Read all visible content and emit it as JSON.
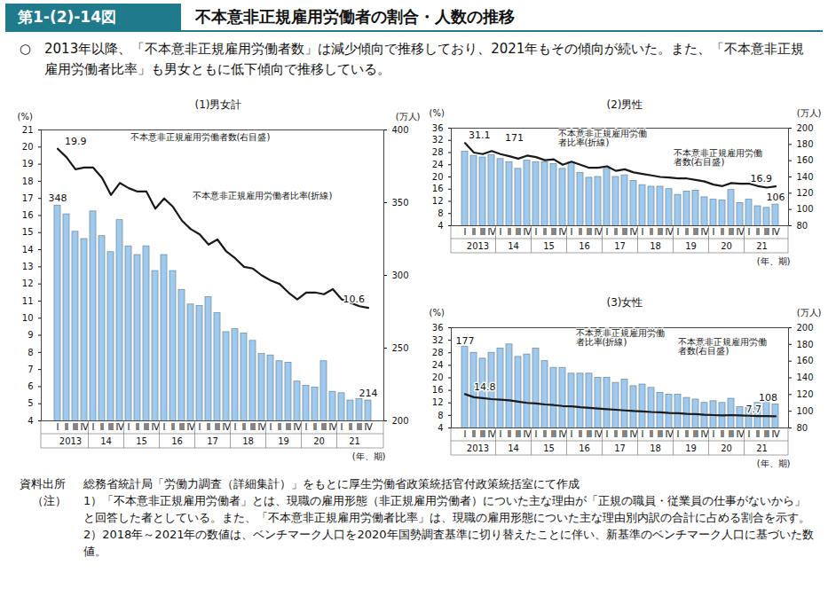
{
  "header": {
    "figure_no": "第1-(2)-14図",
    "title": "不本意非正規雇用労働者の割合・人数の推移",
    "summary_mark": "○",
    "summary": "2013年以降、「不本意非正規雇用労働者数」は減少傾向で推移しており、2021年もその傾向が続いた。また、「不本意非正規雇用労働者比率」も男女ともに低下傾向で推移している。"
  },
  "chart_data": [
    {
      "type": "bar",
      "title": "(1)男女計",
      "categories": [
        "Ⅰ",
        "Ⅱ",
        "Ⅲ",
        "Ⅳ",
        "Ⅰ",
        "Ⅱ",
        "Ⅲ",
        "Ⅳ",
        "Ⅰ",
        "Ⅱ",
        "Ⅲ",
        "Ⅳ",
        "Ⅰ",
        "Ⅱ",
        "Ⅲ",
        "Ⅳ",
        "Ⅰ",
        "Ⅱ",
        "Ⅲ",
        "Ⅳ",
        "Ⅰ",
        "Ⅱ",
        "Ⅲ",
        "Ⅳ",
        "Ⅰ",
        "Ⅱ",
        "Ⅲ",
        "Ⅳ",
        "Ⅰ",
        "Ⅱ",
        "Ⅲ",
        "Ⅳ",
        "Ⅰ",
        "Ⅱ",
        "Ⅲ",
        "Ⅳ"
      ],
      "x_groups": [
        "2013",
        "14",
        "15",
        "16",
        "17",
        "18",
        "19",
        "20",
        "21"
      ],
      "x_label": "(年、期)",
      "y_label": "(%)",
      "ylim": [
        4,
        21
      ],
      "yticks": [
        4,
        5,
        6,
        7,
        8,
        9,
        10,
        11,
        12,
        13,
        14,
        15,
        16,
        17,
        18,
        19,
        20,
        21
      ],
      "y2_label": "(万人)",
      "y2lim": [
        200,
        400
      ],
      "y2ticks": [
        200,
        250,
        300,
        350,
        400
      ],
      "grid": false,
      "series": [
        {
          "name": "不本意非正規雇用労働者数(右目盛)",
          "type": "bar",
          "axis": "y2",
          "color": "#9fcaee",
          "values": [
            348,
            342,
            330,
            325,
            344,
            327,
            316,
            338,
            320,
            314,
            320,
            303,
            314,
            303,
            290,
            280,
            279,
            285,
            274,
            261,
            263,
            260,
            255,
            246,
            245,
            241,
            240,
            227,
            224,
            223,
            241,
            220,
            219,
            214,
            215,
            214
          ]
        },
        {
          "name": "不本意非正規雇用労働者比率(折線)",
          "type": "line",
          "color": "#1a1a1a",
          "values": [
            19.9,
            19.4,
            18.7,
            18.8,
            18.8,
            18.2,
            17.2,
            17.9,
            17.6,
            17.4,
            17.4,
            16.4,
            17.0,
            16.5,
            15.7,
            15.2,
            14.9,
            14.3,
            14.6,
            13.9,
            13.5,
            13.0,
            12.9,
            12.5,
            12.2,
            12.0,
            11.5,
            11.1,
            11.5,
            11.5,
            11.4,
            11.7,
            11.1,
            10.9,
            10.7,
            10.6
          ]
        }
      ],
      "annotations": [
        {
          "text": "348",
          "series": 0,
          "index": 0
        },
        {
          "text": "19.9",
          "series": 1,
          "index": 0
        },
        {
          "text": "214",
          "series": 0,
          "index": 35
        },
        {
          "text": "10.6",
          "series": 1,
          "index": 35
        }
      ]
    },
    {
      "type": "bar",
      "title": "(2)男性",
      "categories": [
        "Ⅰ",
        "Ⅱ",
        "Ⅲ",
        "Ⅳ",
        "Ⅰ",
        "Ⅱ",
        "Ⅲ",
        "Ⅳ",
        "Ⅰ",
        "Ⅱ",
        "Ⅲ",
        "Ⅳ",
        "Ⅰ",
        "Ⅱ",
        "Ⅲ",
        "Ⅳ",
        "Ⅰ",
        "Ⅱ",
        "Ⅲ",
        "Ⅳ",
        "Ⅰ",
        "Ⅱ",
        "Ⅲ",
        "Ⅳ",
        "Ⅰ",
        "Ⅱ",
        "Ⅲ",
        "Ⅳ",
        "Ⅰ",
        "Ⅱ",
        "Ⅲ",
        "Ⅳ",
        "Ⅰ",
        "Ⅱ",
        "Ⅲ",
        "Ⅳ"
      ],
      "x_groups": [
        "2013",
        "14",
        "15",
        "16",
        "17",
        "18",
        "19",
        "20",
        "21"
      ],
      "x_label": "(年、期)",
      "y_label": "(%)",
      "ylim": [
        4,
        36
      ],
      "yticks": [
        4,
        8,
        12,
        16,
        20,
        24,
        28,
        32,
        36
      ],
      "y2_label": "(万人)",
      "y2lim": [
        80,
        200
      ],
      "y2ticks": [
        80,
        100,
        120,
        140,
        160,
        180,
        200
      ],
      "grid": false,
      "series": [
        {
          "name": "不本意非正規雇用労働者数(右目盛)",
          "type": "bar",
          "axis": "y2",
          "color": "#9fcaee",
          "values": [
            171,
            166,
            164,
            167,
            162,
            158,
            150,
            160,
            158,
            158,
            156,
            150,
            158,
            145,
            139,
            140,
            150,
            140,
            142,
            135,
            130,
            128,
            128,
            125,
            118,
            122,
            123,
            115,
            112,
            111,
            124,
            108,
            112,
            104,
            102,
            106
          ]
        },
        {
          "name": "不本意非正規雇用労働者比率(折線)",
          "type": "line",
          "color": "#1a1a1a",
          "values": [
            31.1,
            28.0,
            27.5,
            28.5,
            27.5,
            26.8,
            26.0,
            27.0,
            26.5,
            25.5,
            25.8,
            24.0,
            25.0,
            24.0,
            23.0,
            23.0,
            23.5,
            22.0,
            22.5,
            21.5,
            21.0,
            20.5,
            20.0,
            19.8,
            19.5,
            19.5,
            19.0,
            18.5,
            17.5,
            17.0,
            18.0,
            17.8,
            17.8,
            17.0,
            16.5,
            16.9
          ]
        }
      ],
      "annotations": [
        {
          "text": "171",
          "series": 0,
          "index": 0
        },
        {
          "text": "31.1",
          "series": 1,
          "index": 0
        },
        {
          "text": "106",
          "series": 0,
          "index": 35
        },
        {
          "text": "16.9",
          "series": 1,
          "index": 35
        }
      ]
    },
    {
      "type": "bar",
      "title": "(3)女性",
      "categories": [
        "Ⅰ",
        "Ⅱ",
        "Ⅲ",
        "Ⅳ",
        "Ⅰ",
        "Ⅱ",
        "Ⅲ",
        "Ⅳ",
        "Ⅰ",
        "Ⅱ",
        "Ⅲ",
        "Ⅳ",
        "Ⅰ",
        "Ⅱ",
        "Ⅲ",
        "Ⅳ",
        "Ⅰ",
        "Ⅱ",
        "Ⅲ",
        "Ⅳ",
        "Ⅰ",
        "Ⅱ",
        "Ⅲ",
        "Ⅳ",
        "Ⅰ",
        "Ⅱ",
        "Ⅲ",
        "Ⅳ",
        "Ⅰ",
        "Ⅱ",
        "Ⅲ",
        "Ⅳ",
        "Ⅰ",
        "Ⅱ",
        "Ⅲ",
        "Ⅳ"
      ],
      "x_groups": [
        "2013",
        "14",
        "15",
        "16",
        "17",
        "18",
        "19",
        "20",
        "21"
      ],
      "x_label": "(年、期)",
      "y_label": "(%)",
      "ylim": [
        4,
        36
      ],
      "yticks": [
        4,
        8,
        12,
        16,
        20,
        24,
        28,
        32,
        36
      ],
      "y2_label": "(万人)",
      "y2lim": [
        80,
        200
      ],
      "y2ticks": [
        80,
        100,
        120,
        140,
        160,
        180,
        200
      ],
      "grid": false,
      "series": [
        {
          "name": "不本意非正規雇用労働者数(右目盛)",
          "type": "bar",
          "axis": "y2",
          "color": "#9fcaee",
          "values": [
            177,
            170,
            163,
            170,
            175,
            180,
            165,
            168,
            175,
            160,
            152,
            152,
            145,
            145,
            145,
            140,
            140,
            134,
            138,
            130,
            132,
            128,
            122,
            120,
            120,
            116,
            114,
            110,
            112,
            110,
            115,
            105,
            104,
            110,
            112,
            108
          ]
        },
        {
          "name": "不本意非正規雇用労働者比率(折線)",
          "type": "line",
          "color": "#1a1a1a",
          "values": [
            14.8,
            13.8,
            13.5,
            13.2,
            13.0,
            12.8,
            12.4,
            12.0,
            11.8,
            11.5,
            11.3,
            11.0,
            10.9,
            10.6,
            10.4,
            10.2,
            10.0,
            9.8,
            9.6,
            9.4,
            9.3,
            9.1,
            9.0,
            8.8,
            8.7,
            8.5,
            8.4,
            8.2,
            8.1,
            8.0,
            8.1,
            8.0,
            7.9,
            7.8,
            7.8,
            7.7
          ]
        }
      ],
      "annotations": [
        {
          "text": "177",
          "series": 0,
          "index": 0
        },
        {
          "text": "14.8",
          "series": 1,
          "index": 0
        },
        {
          "text": "108",
          "series": 0,
          "index": 35
        },
        {
          "text": "7.7",
          "series": 1,
          "index": 35
        }
      ]
    }
  ],
  "notes": {
    "source_label": "資料出所",
    "source": "総務省統計局「労働力調査（詳細集計）」をもとに厚生労働省政策統括官付政策統括室にて作成",
    "note_label": "（注）",
    "items": [
      "1）「不本意非正規雇用労働者」とは、現職の雇用形態（非正規雇用労働者）についた主な理由が「正規の職員・従業員の仕事がないから」と回答した者としている。また、「不本意非正規雇用労働者比率」は、現職の雇用形態についた主な理由別内訳の合計に占める割合を示す。",
      "2）2018年～2021年の数値は、ベンチマーク人口を2020年国勢調査基準に切り替えたことに伴い、新基準のベンチマーク人口に基づいた数値。"
    ]
  }
}
